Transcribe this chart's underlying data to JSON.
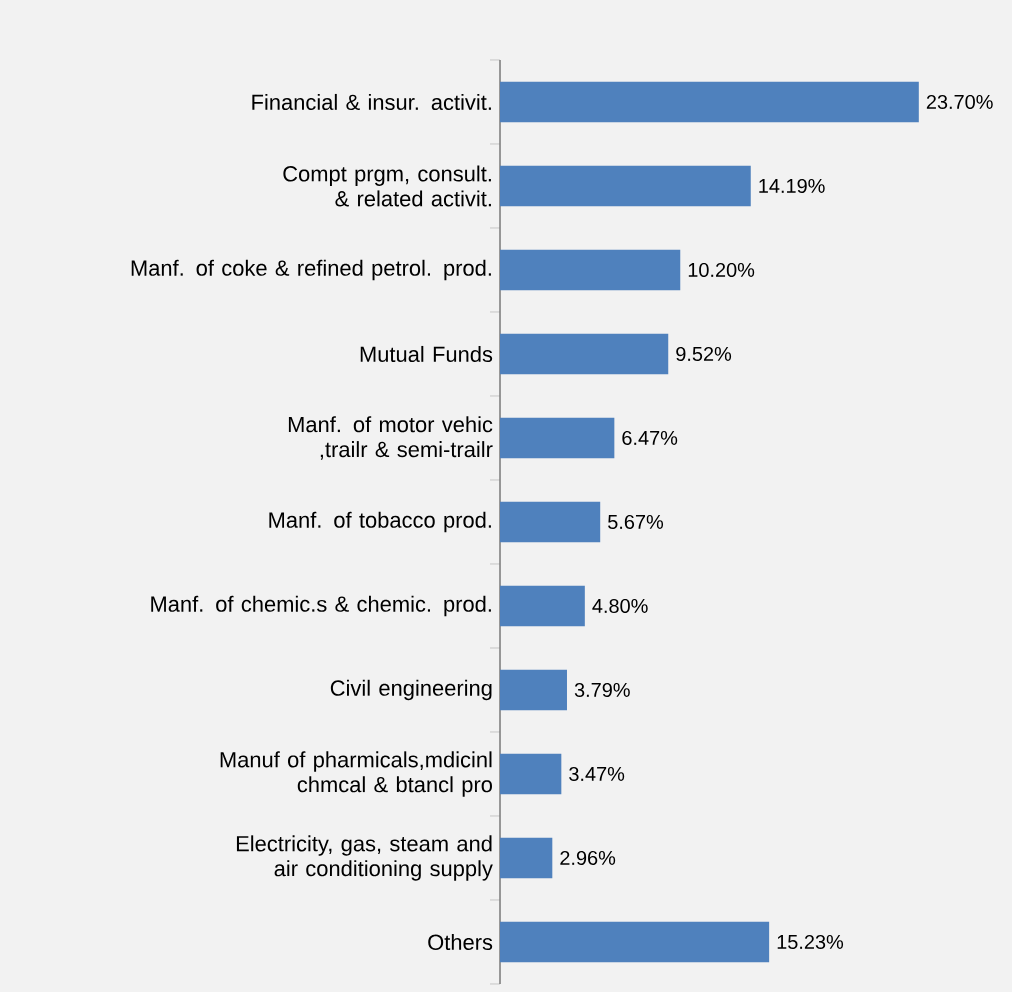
{
  "chart_data": {
    "type": "bar",
    "orientation": "horizontal",
    "color": "#4f81bd",
    "categories": [
      "Financial & insur. activit.",
      "Compt prgm, consult. & related activit.",
      "Manf. of coke & refined petrol. prod.",
      "Mutual Funds",
      "Manf. of motor vehic ,trailr & semi-trailr",
      "Manf. of tobacco prod.",
      "Manf. of chemic.s & chemic. prod.",
      "Civil engineering",
      "Manuf of pharmicals,mdicinl chmcal & btancl pro",
      "Electricity, gas, steam and air conditioning supply",
      "Others"
    ],
    "values": [
      23.7,
      14.19,
      10.2,
      9.52,
      6.47,
      5.67,
      4.8,
      3.79,
      3.47,
      2.96,
      15.23
    ],
    "value_labels": [
      "23.70%",
      "14.19%",
      "10.20%",
      "9.52%",
      "6.47%",
      "5.67%",
      "4.80%",
      "3.79%",
      "3.47%",
      "2.96%",
      "15.23%"
    ]
  }
}
